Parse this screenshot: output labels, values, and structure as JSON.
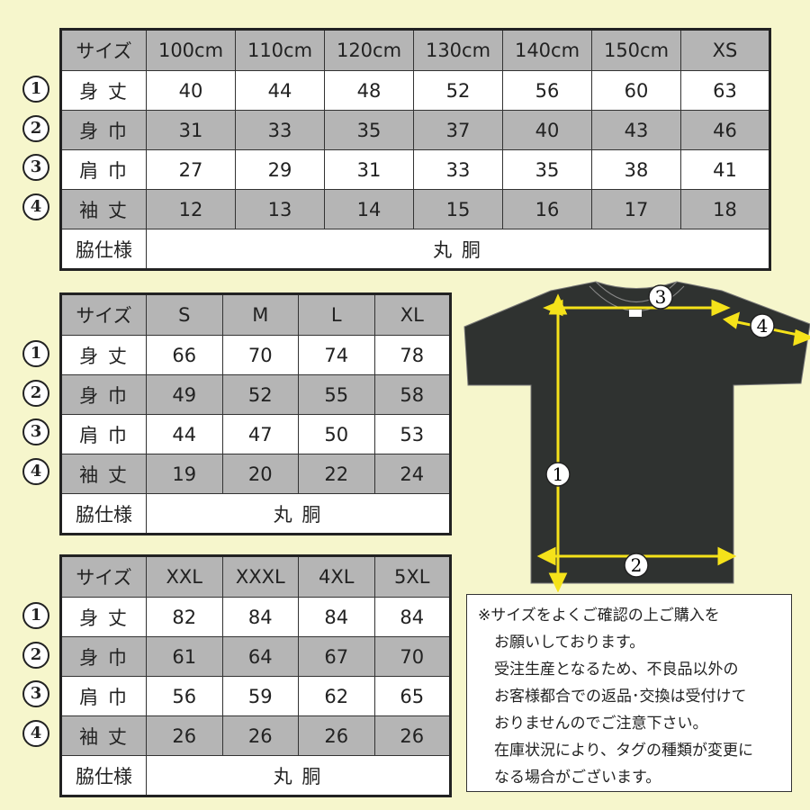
{
  "tables": [
    {
      "header": [
        "サイズ",
        "100cm",
        "110cm",
        "120cm",
        "130cm",
        "140cm",
        "150cm",
        "XS"
      ],
      "rows": [
        {
          "num": "1",
          "label": "身 丈",
          "values": [
            "40",
            "44",
            "48",
            "52",
            "56",
            "60",
            "63"
          ]
        },
        {
          "num": "2",
          "label": "身 巾",
          "values": [
            "31",
            "33",
            "35",
            "37",
            "40",
            "43",
            "46"
          ]
        },
        {
          "num": "3",
          "label": "肩 巾",
          "values": [
            "27",
            "29",
            "31",
            "33",
            "35",
            "38",
            "41"
          ]
        },
        {
          "num": "4",
          "label": "袖 丈",
          "values": [
            "12",
            "13",
            "14",
            "15",
            "16",
            "17",
            "18"
          ]
        }
      ],
      "side_label": "脇仕様",
      "side_value": "丸 胴"
    },
    {
      "header": [
        "サイズ",
        "S",
        "M",
        "L",
        "XL"
      ],
      "rows": [
        {
          "num": "1",
          "label": "身 丈",
          "values": [
            "66",
            "70",
            "74",
            "78"
          ]
        },
        {
          "num": "2",
          "label": "身 巾",
          "values": [
            "49",
            "52",
            "55",
            "58"
          ]
        },
        {
          "num": "3",
          "label": "肩 巾",
          "values": [
            "44",
            "47",
            "50",
            "53"
          ]
        },
        {
          "num": "4",
          "label": "袖 丈",
          "values": [
            "19",
            "20",
            "22",
            "24"
          ]
        }
      ],
      "side_label": "脇仕様",
      "side_value": "丸 胴"
    },
    {
      "header": [
        "サイズ",
        "XXL",
        "XXXL",
        "4XL",
        "5XL"
      ],
      "rows": [
        {
          "num": "1",
          "label": "身 丈",
          "values": [
            "82",
            "84",
            "84",
            "84"
          ]
        },
        {
          "num": "2",
          "label": "身 巾",
          "values": [
            "61",
            "64",
            "67",
            "70"
          ]
        },
        {
          "num": "3",
          "label": "肩 巾",
          "values": [
            "56",
            "59",
            "62",
            "65"
          ]
        },
        {
          "num": "4",
          "label": "袖 丈",
          "values": [
            "26",
            "26",
            "26",
            "26"
          ]
        }
      ],
      "side_label": "脇仕様",
      "side_value": "丸 胴"
    }
  ],
  "diagram": {
    "markers": [
      "1",
      "2",
      "3",
      "4"
    ],
    "shirt_color": "#2f3230",
    "arrow_color": "#f5e21a"
  },
  "note": {
    "lines": [
      "※サイズをよくご確認の上ご購入を",
      "お願いしております。",
      "受注生産となるため、不良品以外の",
      "お客様都合での返品･交換は受付けて",
      "おりませんのでご注意下さい。",
      "在庫状況により、タグの種類が変更に",
      "なる場合がございます。"
    ]
  },
  "colors": {
    "background": "#f6f6cc",
    "row_gray": "#b5b5b5",
    "row_white": "#ffffff"
  }
}
